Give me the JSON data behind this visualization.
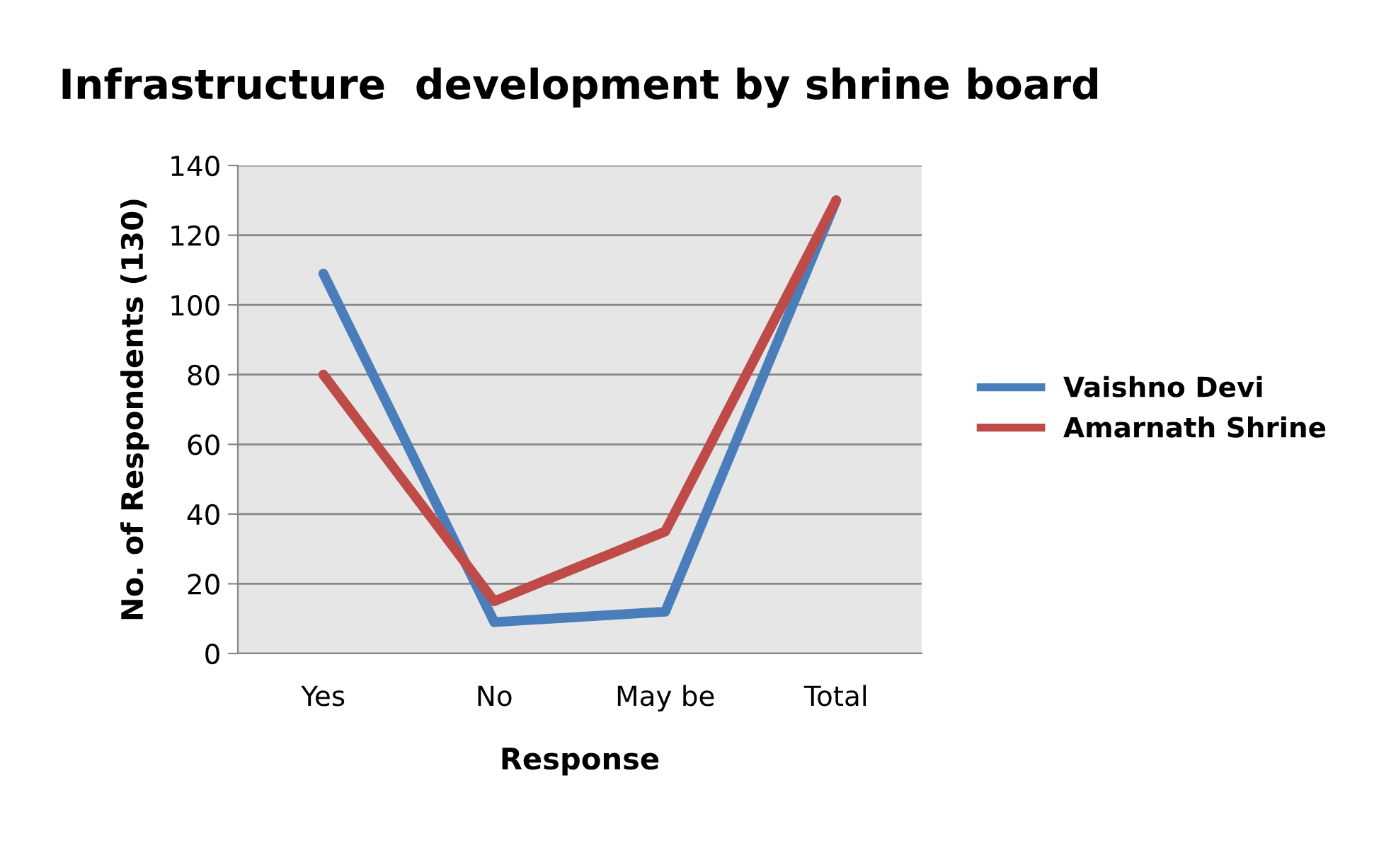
{
  "chart_data": {
    "type": "line",
    "title": "Infrastructure  development by shrine board",
    "xlabel": "Response",
    "ylabel": "No. of Respondents (130)",
    "categories": [
      "Yes",
      "No",
      "May be",
      "Total"
    ],
    "series": [
      {
        "name": "Vaishno Devi",
        "color": "#4a7ebb",
        "values": [
          109,
          9,
          12,
          130
        ]
      },
      {
        "name": "Amarnath Shrine",
        "color": "#be4b48",
        "values": [
          80,
          15,
          35,
          130
        ]
      }
    ],
    "ylim": [
      0,
      140
    ],
    "yticks": [
      0,
      20,
      40,
      60,
      80,
      100,
      120,
      140
    ],
    "grid": "y",
    "legend": "right",
    "marker": "none",
    "line_style": "solid"
  }
}
